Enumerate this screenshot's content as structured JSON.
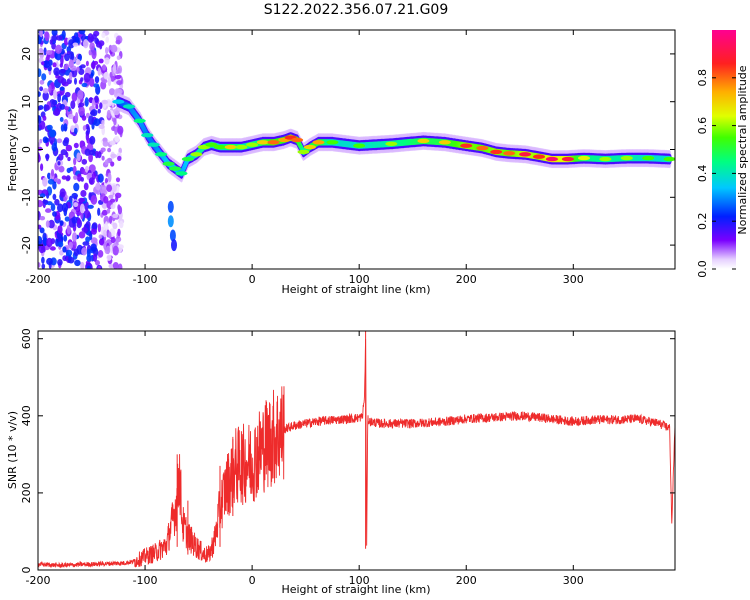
{
  "figure_title": "S122.2022.356.07.21.G09",
  "colors": {
    "snr_line": "#ee2b2b",
    "axis": "#000000",
    "background": "#ffffff"
  },
  "colorbar": {
    "label": "Normalized spectral amplitude",
    "range": [
      0,
      1
    ],
    "ticks": [
      0.0,
      0.2,
      0.4,
      0.6,
      0.8
    ],
    "tick_labels": [
      "0.0",
      "0.2",
      "0.4",
      "0.6",
      "0.8"
    ],
    "colormap": "rainbow (white → purple → blue → cyan → green → yellow → orange → red → magenta)",
    "orientation": "vertical, labels rotated"
  },
  "chart_data": [
    {
      "type": "heatmap",
      "name": "spectrogram",
      "title": "",
      "xlabel": "Height of straight line (km)",
      "ylabel": "Frequency (Hz)",
      "xlim": [
        -200,
        395
      ],
      "ylim": [
        -25,
        25
      ],
      "xticks": [
        -200,
        -100,
        0,
        100,
        200,
        300
      ],
      "xtick_labels": [
        "-200",
        "-100",
        "0",
        "100",
        "200",
        "300"
      ],
      "yticks": [
        -20,
        -10,
        0,
        10,
        20
      ],
      "ytick_labels": [
        "-20",
        "-10",
        "0",
        "10",
        "20"
      ],
      "ridge": {
        "description": "peak frequency track (Hz) vs height (km)",
        "x": [
          -125,
          -115,
          -105,
          -98,
          -92,
          -85,
          -78,
          -72,
          -66,
          -60,
          -52,
          -45,
          -38,
          -30,
          -20,
          -10,
          0,
          10,
          20,
          30,
          36,
          42,
          48,
          54,
          62,
          75,
          100,
          130,
          160,
          180,
          200,
          215,
          228,
          240,
          255,
          268,
          280,
          295,
          310,
          330,
          350,
          370,
          390
        ],
        "freq": [
          10,
          9,
          6,
          3,
          1,
          -1,
          -3,
          -4,
          -5,
          -2,
          -1,
          0.5,
          1,
          0.5,
          0.5,
          0.5,
          1,
          1.5,
          1.5,
          2,
          2.5,
          2,
          -0.5,
          0.5,
          1.5,
          1.5,
          0.8,
          1.2,
          1.8,
          1.5,
          0.8,
          0.3,
          -0.5,
          -0.8,
          -1,
          -1.5,
          -2,
          -2,
          -1.8,
          -2,
          -1.8,
          -1.8,
          -2
        ],
        "amplitude": [
          0.35,
          0.4,
          0.45,
          0.4,
          0.4,
          0.45,
          0.5,
          0.5,
          0.45,
          0.5,
          0.6,
          0.6,
          0.55,
          0.55,
          0.7,
          0.6,
          0.6,
          0.7,
          0.8,
          0.75,
          0.85,
          0.8,
          0.6,
          0.7,
          0.75,
          0.55,
          0.55,
          0.6,
          0.7,
          0.7,
          0.85,
          0.8,
          0.85,
          0.8,
          0.9,
          0.85,
          0.95,
          0.9,
          0.65,
          0.6,
          0.6,
          0.55,
          0.55
        ]
      },
      "side_lobe": {
        "description": "isolated lower-frequency blobs",
        "x": [
          -76,
          -76,
          -74,
          -73
        ],
        "freq": [
          -12,
          -15,
          -18,
          -20
        ],
        "amplitude": [
          0.25,
          0.3,
          0.25,
          0.2
        ]
      },
      "noise_region": {
        "x_range": [
          -200,
          -122
        ],
        "freq_range": [
          -25,
          25
        ],
        "amplitude": 0.15
      }
    },
    {
      "type": "line",
      "name": "snr",
      "title": "",
      "xlabel": "Height of straight line (km)",
      "ylabel": "SNR (10 * v/v)",
      "xlim": [
        -200,
        395
      ],
      "ylim": [
        0,
        620
      ],
      "xticks": [
        -200,
        -100,
        0,
        100,
        200,
        300
      ],
      "xtick_labels": [
        "-200",
        "-100",
        "0",
        "100",
        "200",
        "300"
      ],
      "yticks": [
        0,
        200,
        400,
        600
      ],
      "ytick_labels": [
        "0",
        "200",
        "400",
        "600"
      ],
      "x": [
        -200,
        -180,
        -160,
        -140,
        -120,
        -110,
        -100,
        -90,
        -80,
        -75,
        -70,
        -68,
        -65,
        -60,
        -55,
        -50,
        -45,
        -40,
        -35,
        -30,
        -25,
        -20,
        -15,
        -10,
        -5,
        0,
        5,
        10,
        20,
        30,
        40,
        50,
        60,
        70,
        80,
        90,
        100,
        103,
        105,
        106,
        107,
        108,
        110,
        120,
        150,
        180,
        200,
        220,
        250,
        270,
        300,
        320,
        340,
        360,
        380,
        390,
        392,
        395
      ],
      "values": [
        15,
        12,
        14,
        16,
        18,
        22,
        35,
        45,
        65,
        120,
        180,
        260,
        120,
        90,
        70,
        55,
        40,
        40,
        80,
        160,
        210,
        240,
        270,
        270,
        280,
        280,
        300,
        320,
        345,
        365,
        375,
        380,
        385,
        388,
        390,
        392,
        395,
        398,
        450,
        600,
        60,
        390,
        385,
        380,
        380,
        385,
        392,
        395,
        400,
        395,
        385,
        390,
        390,
        392,
        380,
        368,
        120,
        380
      ],
      "spikes": [
        {
          "x": -70,
          "lo": 60,
          "hi": 300
        },
        {
          "x": -60,
          "lo": 40,
          "hi": 180
        },
        {
          "x": -30,
          "lo": 60,
          "hi": 270
        },
        {
          "x": -18,
          "lo": 140,
          "hi": 340
        },
        {
          "x": -10,
          "lo": 200,
          "hi": 360
        },
        {
          "x": 106,
          "lo": 55,
          "hi": 620
        }
      ]
    }
  ]
}
